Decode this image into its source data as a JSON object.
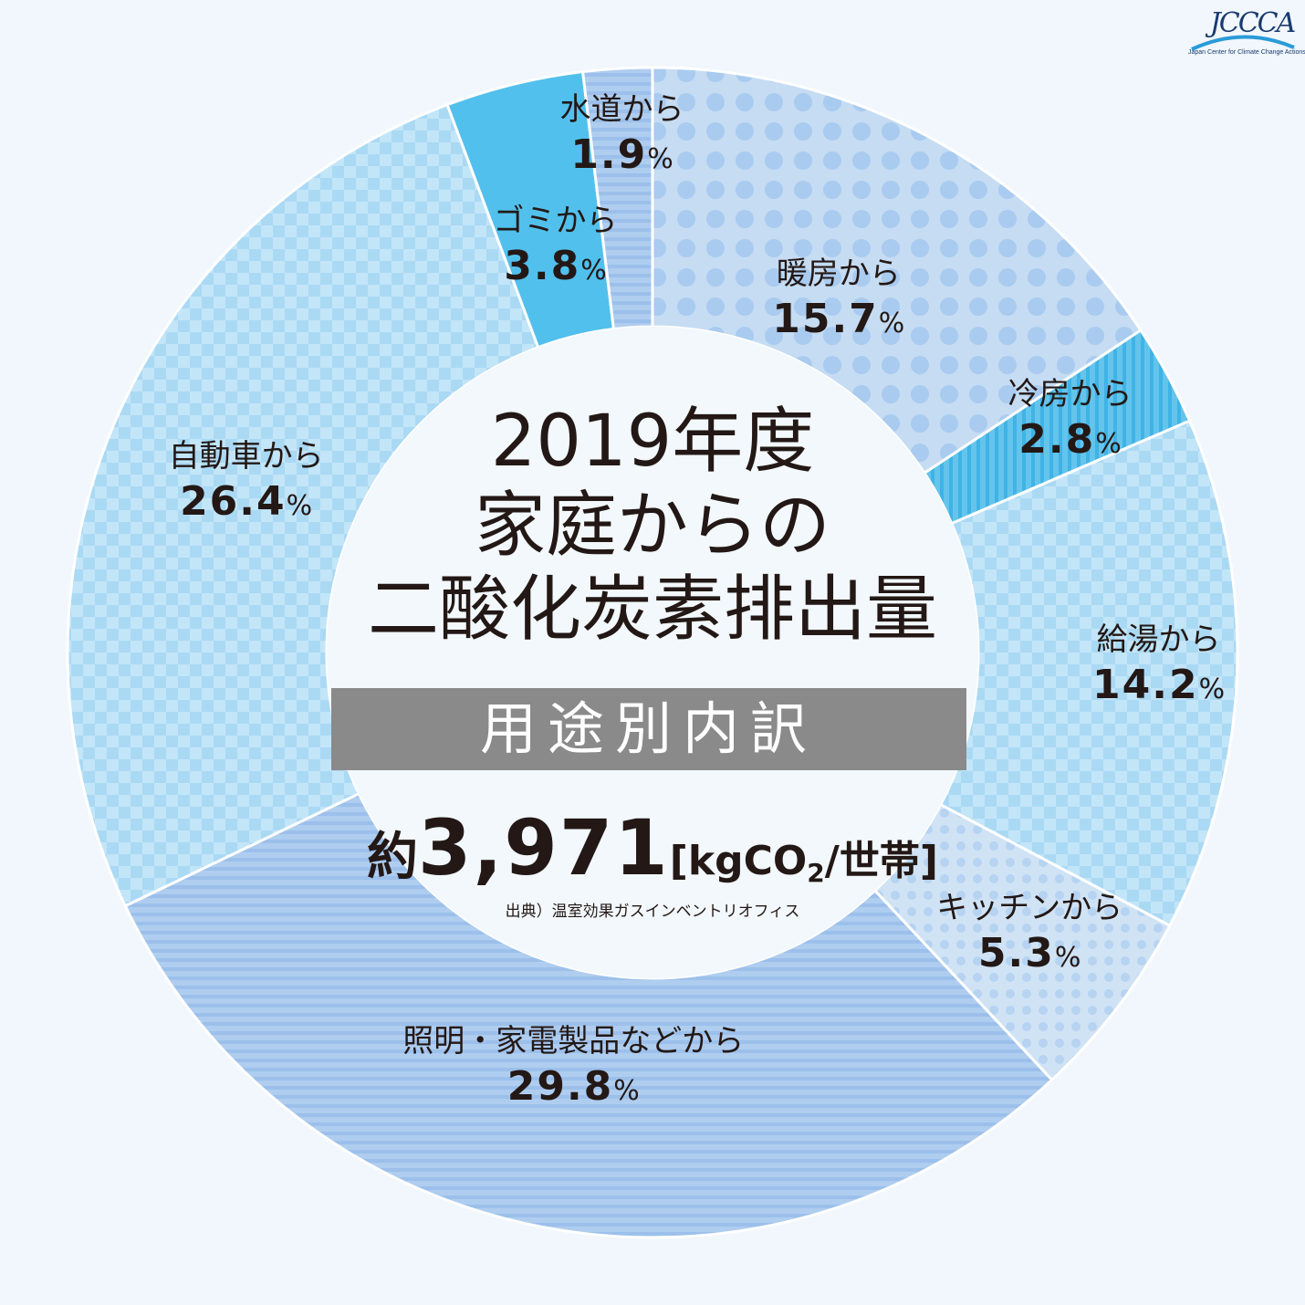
{
  "logo": {
    "text": "JCCCA",
    "subtitle": "Japan Center for Climate Change Actions"
  },
  "center": {
    "title_year": "2019年度",
    "title_line2": "家庭からの",
    "title_line3": "二酸化炭素排出量",
    "breakdown": "用途別内訳",
    "total_prefix": "約",
    "total_value": "3,971",
    "total_unit_open": "[kgCO",
    "total_unit_sub": "2",
    "total_unit_close": "/世帯]",
    "source": "出典）温室効果ガスインベントリオフィス"
  },
  "chart_data": {
    "type": "pie",
    "title": "2019年度 家庭からの二酸化炭素排出量 用途別内訳",
    "unit": "%",
    "slices": [
      {
        "label": "暖房から",
        "value": 15.7,
        "value_text": "15.7",
        "color": "#c5dcf3",
        "pattern": "dots"
      },
      {
        "label": "冷房から",
        "value": 2.8,
        "value_text": "2.8",
        "color": "#55bde9",
        "pattern": "vstripes"
      },
      {
        "label": "給湯から",
        "value": 14.2,
        "value_text": "14.2",
        "color": "#bfe3f7",
        "pattern": "check"
      },
      {
        "label": "キッチンから",
        "value": 5.3,
        "value_text": "5.3",
        "color": "#d0e3f5",
        "pattern": "smalldots"
      },
      {
        "label": "照明・家電製品などから",
        "value": 29.8,
        "value_text": "29.8",
        "color": "#a7c9ee",
        "pattern": "hstripes"
      },
      {
        "label": "自動車から",
        "value": 26.4,
        "value_text": "26.4",
        "color": "#bfe3f7",
        "pattern": "check"
      },
      {
        "label": "ゴミから",
        "value": 3.8,
        "value_text": "3.8",
        "color": "#52c0ec",
        "pattern": "solid"
      },
      {
        "label": "水道から",
        "value": 1.9,
        "value_text": "1.9",
        "color": "#a7c9ee",
        "pattern": "hstripes"
      }
    ]
  }
}
